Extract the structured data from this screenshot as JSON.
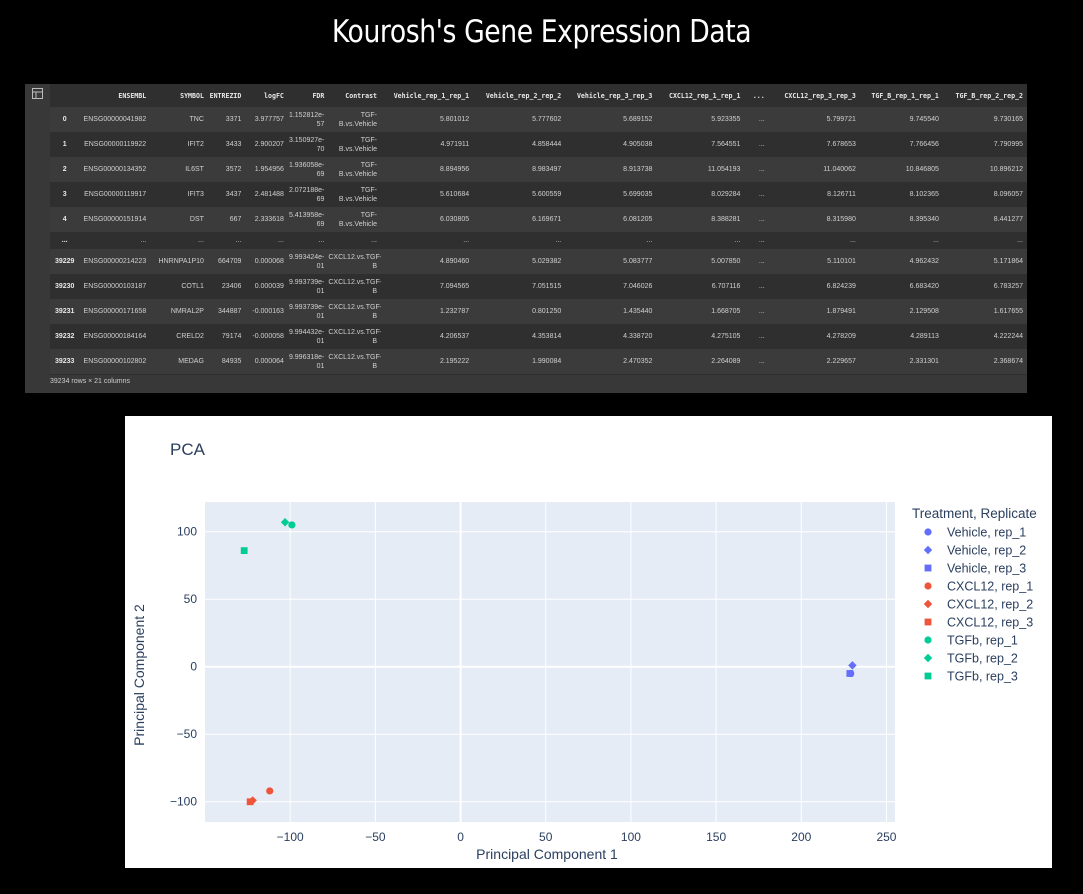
{
  "page_title": "Kourosh's Gene Expression Data",
  "dataframe": {
    "columns": [
      "",
      "ENSEMBL",
      "SYMBOL",
      "ENTREZID",
      "logFC",
      "FDR",
      "Contrast",
      "Vehicle_rep_1_rep_1",
      "Vehicle_rep_2_rep_2",
      "Vehicle_rep_3_rep_3",
      "CXCL12_rep_1_rep_1",
      "...",
      "CXCL12_rep_3_rep_3",
      "TGF_B_rep_1_rep_1",
      "TGF_B_rep_2_rep_2"
    ],
    "rows": [
      [
        "0",
        "ENSG00000041982",
        "TNC",
        "3371",
        "3.977757",
        "1.152812e-57",
        "TGF-B.vs.Vehicle",
        "5.801012",
        "5.777602",
        "5.689152",
        "5.923355",
        "...",
        "5.799721",
        "9.745540",
        "9.730165"
      ],
      [
        "1",
        "ENSG00000119922",
        "IFIT2",
        "3433",
        "2.900207",
        "3.150927e-70",
        "TGF-B.vs.Vehicle",
        "4.971911",
        "4.858444",
        "4.905038",
        "7.564551",
        "...",
        "7.678653",
        "7.766456",
        "7.790995"
      ],
      [
        "2",
        "ENSG00000134352",
        "IL6ST",
        "3572",
        "1.954956",
        "1.936058e-69",
        "TGF-B.vs.Vehicle",
        "8.894956",
        "8.983497",
        "8.913738",
        "11.054193",
        "...",
        "11.040062",
        "10.846805",
        "10.896212"
      ],
      [
        "3",
        "ENSG00000119917",
        "IFIT3",
        "3437",
        "2.481488",
        "2.072188e-69",
        "TGF-B.vs.Vehicle",
        "5.610684",
        "5.600559",
        "5.699035",
        "8.029284",
        "...",
        "8.126711",
        "8.102365",
        "8.096057"
      ],
      [
        "4",
        "ENSG00000151914",
        "DST",
        "667",
        "2.333618",
        "5.413958e-69",
        "TGF-B.vs.Vehicle",
        "6.030805",
        "6.169671",
        "6.081205",
        "8.388281",
        "...",
        "8.315980",
        "8.395340",
        "8.441277"
      ],
      [
        "...",
        "...",
        "...",
        "...",
        "...",
        "...",
        "...",
        "...",
        "...",
        "...",
        "...",
        "...",
        "...",
        "...",
        "..."
      ],
      [
        "39229",
        "ENSG00000214223",
        "HNRNPA1P10",
        "664709",
        "0.000068",
        "9.993424e-01",
        "CXCL12.vs.TGF-B",
        "4.890460",
        "5.029382",
        "5.083777",
        "5.007850",
        "...",
        "5.110101",
        "4.962432",
        "5.171864"
      ],
      [
        "39230",
        "ENSG00000103187",
        "COTL1",
        "23406",
        "0.000039",
        "9.993739e-01",
        "CXCL12.vs.TGF-B",
        "7.094565",
        "7.051515",
        "7.046026",
        "6.707116",
        "...",
        "6.824239",
        "6.683420",
        "6.783257"
      ],
      [
        "39231",
        "ENSG00000171658",
        "NMRAL2P",
        "344887",
        "-0.000163",
        "9.993739e-01",
        "CXCL12.vs.TGF-B",
        "1.232787",
        "0.801250",
        "1.435440",
        "1.668705",
        "...",
        "1.879491",
        "2.129508",
        "1.617655"
      ],
      [
        "39232",
        "ENSG00000184164",
        "CRELD2",
        "79174",
        "-0.000058",
        "9.994432e-01",
        "CXCL12.vs.TGF-B",
        "4.206537",
        "4.353814",
        "4.338720",
        "4.275105",
        "...",
        "4.278209",
        "4.289113",
        "4.222244"
      ],
      [
        "39233",
        "ENSG00000102802",
        "MEDAG",
        "84935",
        "0.000064",
        "9.996318e-01",
        "CXCL12.vs.TGF-B",
        "2.195222",
        "1.990084",
        "2.470352",
        "2.264089",
        "...",
        "2.229657",
        "2.331301",
        "2.368674"
      ]
    ],
    "footer": "39234 rows × 21 columns",
    "gutter_icon": "table-toggle-icon"
  },
  "chart_data": {
    "type": "scatter",
    "title": "PCA",
    "xlabel": "Principal Component 1",
    "ylabel": "Principal Component 2",
    "xlim": [
      -150,
      255
    ],
    "ylim": [
      -115,
      122
    ],
    "xticks": [
      -100,
      -50,
      0,
      50,
      100,
      150,
      200,
      250
    ],
    "yticks": [
      -100,
      -50,
      0,
      50,
      100
    ],
    "xtick_labels": [
      "−100",
      "−50",
      "0",
      "50",
      "100",
      "150",
      "200",
      "250"
    ],
    "ytick_labels": [
      "−100",
      "−50",
      "0",
      "50",
      "100"
    ],
    "grid": true,
    "legend_title": "Treatment, Replicate",
    "legend_position": "right",
    "plot_bg": "#e5ecf6",
    "series": [
      {
        "name": "Vehicle, rep_1",
        "color": "#636efa",
        "symbol": "circle",
        "x": [
          229
        ],
        "y": [
          -5
        ]
      },
      {
        "name": "Vehicle, rep_2",
        "color": "#636efa",
        "symbol": "diamond",
        "x": [
          230
        ],
        "y": [
          1
        ]
      },
      {
        "name": "Vehicle, rep_3",
        "color": "#636efa",
        "symbol": "square",
        "x": [
          228.5
        ],
        "y": [
          -5
        ]
      },
      {
        "name": "CXCL12, rep_1",
        "color": "#ef553b",
        "symbol": "circle",
        "x": [
          -112
        ],
        "y": [
          -92
        ]
      },
      {
        "name": "CXCL12, rep_2",
        "color": "#ef553b",
        "symbol": "diamond",
        "x": [
          -122
        ],
        "y": [
          -99
        ]
      },
      {
        "name": "CXCL12, rep_3",
        "color": "#ef553b",
        "symbol": "square",
        "x": [
          -123.5
        ],
        "y": [
          -100
        ]
      },
      {
        "name": "TGFb, rep_1",
        "color": "#00cc96",
        "symbol": "circle",
        "x": [
          -99
        ],
        "y": [
          105
        ]
      },
      {
        "name": "TGFb, rep_2",
        "color": "#00cc96",
        "symbol": "diamond",
        "x": [
          -103
        ],
        "y": [
          107
        ]
      },
      {
        "name": "TGFb, rep_3",
        "color": "#00cc96",
        "symbol": "square",
        "x": [
          -127
        ],
        "y": [
          86
        ]
      }
    ]
  }
}
